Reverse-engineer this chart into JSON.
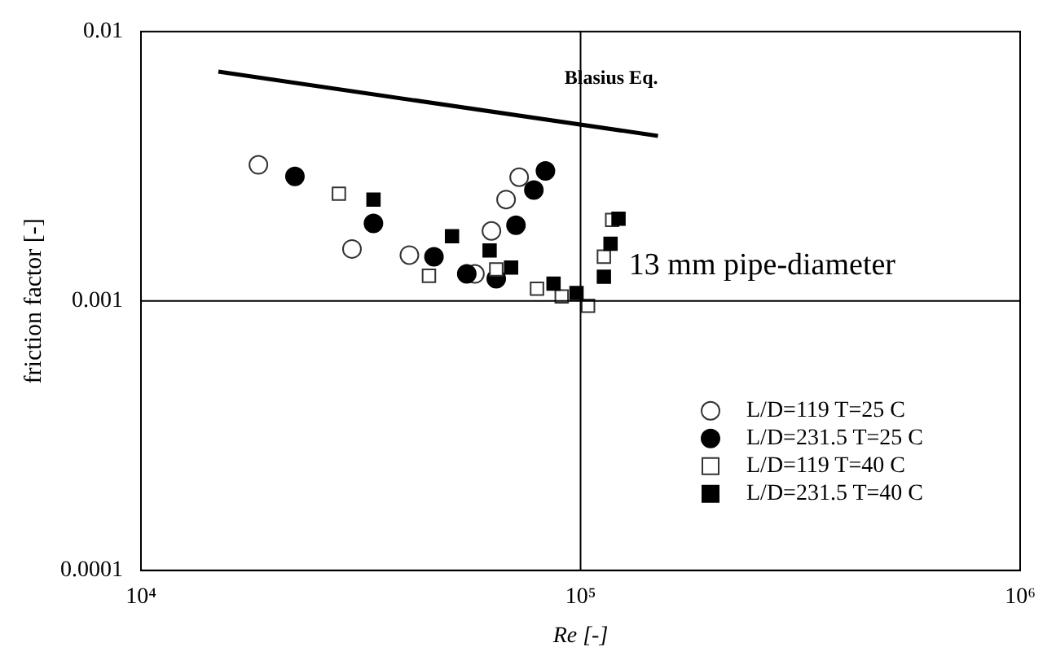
{
  "chart_data": {
    "type": "scatter",
    "xlabel": "Re [-]",
    "ylabel": "friction factor [-]",
    "log": "xy",
    "xlim": [
      10000,
      1000000
    ],
    "ylim": [
      0.0001,
      0.01
    ],
    "xticks": [
      {
        "value": 10000,
        "label": "10⁴"
      },
      {
        "value": 100000,
        "label": "10⁵"
      },
      {
        "value": 1000000,
        "label": "10⁶"
      }
    ],
    "yticks": [
      0.0001,
      0.001,
      0.01
    ],
    "grid": false,
    "legend": "bottom right",
    "annotations": [
      "13 mm pipe-diameter"
    ],
    "ref_lines": [
      {
        "axis": "x",
        "value": 100000
      },
      {
        "axis": "y",
        "value": 0.001
      }
    ],
    "series": [
      {
        "name": "Blasius Eq.",
        "type": "line",
        "color": "#000000",
        "marker": "none",
        "line_style": "solid",
        "x": [
          15000,
          150000
        ],
        "values": [
          0.0071,
          0.0041
        ]
      },
      {
        "name": "L/D=119 T=25 C",
        "color": "#ffffff",
        "marker": "circle",
        "x": [
          18500,
          30200,
          40800,
          57500,
          62700,
          67700,
          72500
        ],
        "values": [
          0.0032,
          0.00156,
          0.00148,
          0.00126,
          0.00182,
          0.00238,
          0.00288
        ]
      },
      {
        "name": "L/D=231.5 T=25 C",
        "color": "#000000",
        "marker": "circle",
        "x": [
          22400,
          33800,
          46400,
          55100,
          64300,
          71300,
          78300,
          83200
        ],
        "values": [
          0.0029,
          0.00194,
          0.00146,
          0.00126,
          0.00121,
          0.00191,
          0.00258,
          0.00304
        ]
      },
      {
        "name": "L/D=119 T=40 C",
        "color": "#ffffff",
        "marker": "square",
        "x": [
          28200,
          45200,
          64300,
          79600,
          90600,
          104000,
          113000,
          118000
        ],
        "values": [
          0.0025,
          0.00124,
          0.00131,
          0.00111,
          0.00104,
          0.00096,
          0.00146,
          0.002
        ]
      },
      {
        "name": "L/D=231.5 T=40 C",
        "color": "#000000",
        "marker": "square",
        "x": [
          33800,
          51000,
          62100,
          69500,
          86800,
          97900,
          113000,
          117000,
          122000
        ],
        "values": [
          0.00238,
          0.00174,
          0.00154,
          0.00133,
          0.00116,
          0.00107,
          0.00123,
          0.00163,
          0.00202
        ]
      }
    ]
  }
}
